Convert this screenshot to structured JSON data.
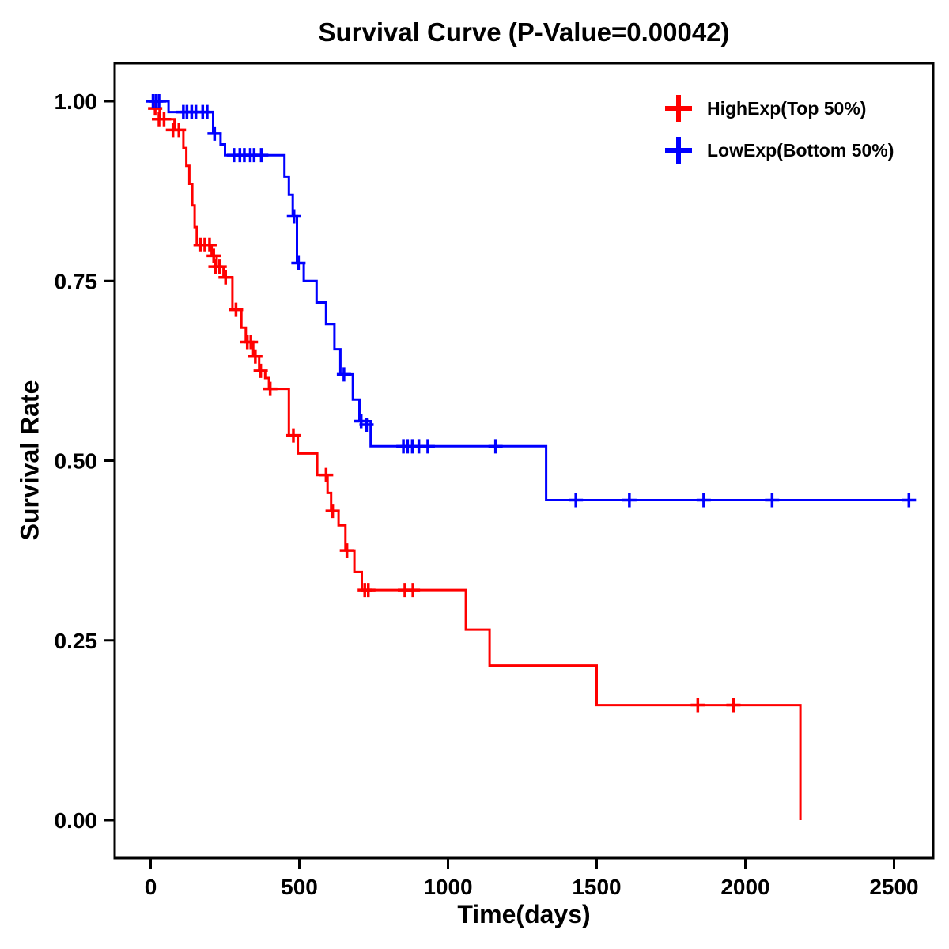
{
  "chart_data": {
    "type": "line",
    "subtype": "kaplan_meier_step_survival",
    "title": "Survival Curve (P-Value=0.00042)",
    "p_value": 0.00042,
    "xlabel": "Time(days)",
    "ylabel": "Survival Rate",
    "xlim": [
      -120,
      2640
    ],
    "ylim": [
      -0.05,
      1.05
    ],
    "x_ticks": [
      0,
      500,
      1000,
      1500,
      2000,
      2500
    ],
    "y_ticks": [
      0.0,
      0.25,
      0.5,
      0.75,
      1.0
    ],
    "y_tick_labels": [
      "0.00",
      "0.25",
      "0.50",
      "0.75",
      "1.00"
    ],
    "grid": false,
    "legend_position": "top-right",
    "frame_color": "#000000",
    "series": [
      {
        "name": "HighExp(Top 50%)",
        "color": "#FF0000",
        "marker": "plus-censor",
        "end_time": 2185,
        "steps": [
          [
            0,
            1.0
          ],
          [
            10,
            0.99
          ],
          [
            30,
            0.975
          ],
          [
            80,
            0.96
          ],
          [
            110,
            0.935
          ],
          [
            120,
            0.91
          ],
          [
            130,
            0.885
          ],
          [
            140,
            0.855
          ],
          [
            148,
            0.825
          ],
          [
            155,
            0.8
          ],
          [
            205,
            0.785
          ],
          [
            222,
            0.77
          ],
          [
            245,
            0.755
          ],
          [
            275,
            0.71
          ],
          [
            305,
            0.685
          ],
          [
            320,
            0.665
          ],
          [
            345,
            0.645
          ],
          [
            365,
            0.625
          ],
          [
            385,
            0.615
          ],
          [
            398,
            0.6
          ],
          [
            465,
            0.535
          ],
          [
            495,
            0.51
          ],
          [
            560,
            0.48
          ],
          [
            595,
            0.455
          ],
          [
            607,
            0.43
          ],
          [
            632,
            0.41
          ],
          [
            655,
            0.375
          ],
          [
            685,
            0.345
          ],
          [
            710,
            0.32
          ],
          [
            1060,
            0.265
          ],
          [
            1140,
            0.215
          ],
          [
            1500,
            0.16
          ],
          [
            2185,
            0.0
          ]
        ],
        "censors": [
          [
            15,
            0.99
          ],
          [
            28,
            0.975
          ],
          [
            45,
            0.975
          ],
          [
            75,
            0.96
          ],
          [
            95,
            0.96
          ],
          [
            168,
            0.8
          ],
          [
            182,
            0.8
          ],
          [
            198,
            0.8
          ],
          [
            212,
            0.785
          ],
          [
            218,
            0.77
          ],
          [
            232,
            0.77
          ],
          [
            252,
            0.755
          ],
          [
            287,
            0.71
          ],
          [
            325,
            0.665
          ],
          [
            337,
            0.665
          ],
          [
            352,
            0.645
          ],
          [
            370,
            0.625
          ],
          [
            402,
            0.6
          ],
          [
            480,
            0.535
          ],
          [
            590,
            0.48
          ],
          [
            612,
            0.43
          ],
          [
            660,
            0.375
          ],
          [
            720,
            0.32
          ],
          [
            732,
            0.32
          ],
          [
            855,
            0.32
          ],
          [
            882,
            0.32
          ],
          [
            1840,
            0.16
          ],
          [
            1960,
            0.16
          ]
        ]
      },
      {
        "name": "LowExp(Bottom 50%)",
        "color": "#0000FF",
        "marker": "plus-censor",
        "end_time": 2570,
        "steps": [
          [
            0,
            1.0
          ],
          [
            60,
            0.985
          ],
          [
            210,
            0.955
          ],
          [
            235,
            0.94
          ],
          [
            250,
            0.925
          ],
          [
            450,
            0.895
          ],
          [
            465,
            0.87
          ],
          [
            478,
            0.84
          ],
          [
            492,
            0.775
          ],
          [
            515,
            0.75
          ],
          [
            558,
            0.72
          ],
          [
            590,
            0.69
          ],
          [
            618,
            0.655
          ],
          [
            638,
            0.62
          ],
          [
            680,
            0.585
          ],
          [
            702,
            0.555
          ],
          [
            740,
            0.52
          ],
          [
            1330,
            0.445
          ]
        ],
        "censors": [
          [
            8,
            1.0
          ],
          [
            18,
            1.0
          ],
          [
            28,
            1.0
          ],
          [
            110,
            0.985
          ],
          [
            122,
            0.985
          ],
          [
            138,
            0.985
          ],
          [
            152,
            0.985
          ],
          [
            175,
            0.985
          ],
          [
            190,
            0.985
          ],
          [
            215,
            0.955
          ],
          [
            280,
            0.925
          ],
          [
            300,
            0.925
          ],
          [
            315,
            0.925
          ],
          [
            335,
            0.925
          ],
          [
            348,
            0.925
          ],
          [
            372,
            0.925
          ],
          [
            482,
            0.84
          ],
          [
            497,
            0.775
          ],
          [
            650,
            0.62
          ],
          [
            708,
            0.555
          ],
          [
            726,
            0.55
          ],
          [
            850,
            0.52
          ],
          [
            864,
            0.52
          ],
          [
            880,
            0.52
          ],
          [
            902,
            0.52
          ],
          [
            932,
            0.52
          ],
          [
            1160,
            0.52
          ],
          [
            1430,
            0.445
          ],
          [
            1610,
            0.445
          ],
          [
            1860,
            0.445
          ],
          [
            2090,
            0.445
          ],
          [
            2550,
            0.445
          ]
        ]
      }
    ]
  }
}
